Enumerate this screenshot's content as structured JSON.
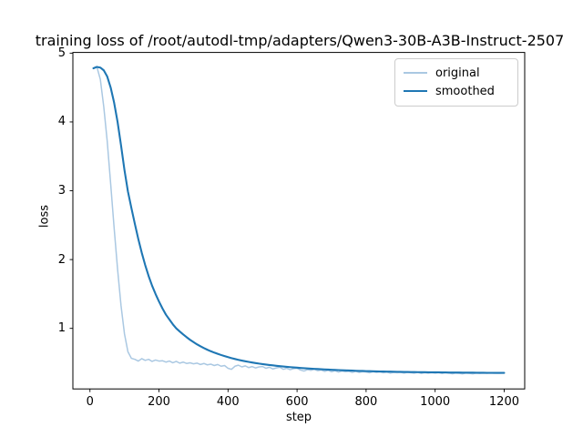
{
  "figure": {
    "title": "training loss of /root/autodl-tmp/adapters/Qwen3-30B-A3B-Instruct-2507"
  },
  "chart_data": {
    "type": "line",
    "title": "training loss of /root/autodl-tmp/adapters/Qwen3-30B-A3B-Instruct-2507",
    "xlabel": "step",
    "ylabel": "loss",
    "grid": false,
    "legend_position": "upper right",
    "xticks": [
      0,
      200,
      400,
      600,
      800,
      1000,
      1200
    ],
    "yticks": [
      1,
      2,
      3,
      4,
      5
    ],
    "xlim": [
      -49.5,
      1259.5
    ],
    "ylim": [
      0.12,
      5.01
    ],
    "x": [
      10,
      20,
      30,
      40,
      50,
      60,
      70,
      80,
      90,
      100,
      110,
      120,
      130,
      140,
      150,
      160,
      170,
      180,
      190,
      200,
      210,
      220,
      230,
      240,
      250,
      260,
      270,
      280,
      290,
      300,
      310,
      320,
      330,
      340,
      350,
      360,
      370,
      380,
      390,
      400,
      410,
      420,
      430,
      440,
      450,
      460,
      470,
      480,
      490,
      500,
      510,
      520,
      530,
      540,
      550,
      560,
      570,
      580,
      590,
      600,
      610,
      620,
      630,
      640,
      650,
      660,
      670,
      680,
      690,
      700,
      710,
      720,
      730,
      740,
      750,
      760,
      770,
      780,
      790,
      800,
      810,
      820,
      830,
      840,
      850,
      860,
      870,
      880,
      890,
      900,
      910,
      920,
      930,
      940,
      950,
      960,
      970,
      980,
      990,
      1000,
      1010,
      1020,
      1030,
      1040,
      1050,
      1060,
      1070,
      1080,
      1090,
      1100,
      1110,
      1120,
      1130,
      1140,
      1150,
      1160,
      1170,
      1180,
      1190,
      1200
    ],
    "series": [
      {
        "name": "original",
        "color": "#aac8e2",
        "values": [
          4.78,
          4.8,
          4.62,
          4.22,
          3.72,
          3.1,
          2.46,
          1.86,
          1.33,
          0.92,
          0.66,
          0.565,
          0.55,
          0.525,
          0.56,
          0.535,
          0.55,
          0.52,
          0.54,
          0.525,
          0.53,
          0.51,
          0.525,
          0.5,
          0.52,
          0.495,
          0.51,
          0.49,
          0.5,
          0.485,
          0.495,
          0.475,
          0.49,
          0.47,
          0.48,
          0.46,
          0.475,
          0.45,
          0.46,
          0.42,
          0.405,
          0.45,
          0.465,
          0.44,
          0.455,
          0.43,
          0.445,
          0.425,
          0.44,
          0.445,
          0.42,
          0.435,
          0.41,
          0.425,
          0.435,
          0.405,
          0.42,
          0.4,
          0.415,
          0.42,
          0.395,
          0.38,
          0.4,
          0.39,
          0.405,
          0.385,
          0.395,
          0.375,
          0.39,
          0.37,
          0.385,
          0.365,
          0.38,
          0.37,
          0.375,
          0.36,
          0.375,
          0.36,
          0.37,
          0.365,
          0.355,
          0.37,
          0.36,
          0.365,
          0.355,
          0.365,
          0.35,
          0.36,
          0.355,
          0.36,
          0.35,
          0.36,
          0.355,
          0.35,
          0.36,
          0.345,
          0.355,
          0.35,
          0.355,
          0.35,
          0.355,
          0.345,
          0.355,
          0.35,
          0.34,
          0.35,
          0.345,
          0.34,
          0.35,
          0.345,
          0.34,
          0.35,
          0.345,
          0.35,
          0.345,
          0.35,
          0.345,
          0.35,
          0.35,
          0.355
        ]
      },
      {
        "name": "smoothed",
        "color": "#1f77b4",
        "values": [
          4.78,
          4.8,
          4.79,
          4.75,
          4.66,
          4.5,
          4.28,
          4.0,
          3.66,
          3.3,
          2.99,
          2.75,
          2.52,
          2.3,
          2.1,
          1.92,
          1.76,
          1.62,
          1.5,
          1.39,
          1.29,
          1.2,
          1.13,
          1.06,
          1.0,
          0.955,
          0.912,
          0.872,
          0.834,
          0.8,
          0.768,
          0.74,
          0.714,
          0.69,
          0.668,
          0.648,
          0.63,
          0.613,
          0.597,
          0.582,
          0.568,
          0.555,
          0.543,
          0.532,
          0.522,
          0.513,
          0.504,
          0.496,
          0.488,
          0.481,
          0.474,
          0.468,
          0.462,
          0.456,
          0.451,
          0.446,
          0.441,
          0.437,
          0.433,
          0.429,
          0.425,
          0.421,
          0.418,
          0.415,
          0.412,
          0.409,
          0.406,
          0.403,
          0.401,
          0.398,
          0.396,
          0.394,
          0.392,
          0.39,
          0.388,
          0.386,
          0.384,
          0.382,
          0.381,
          0.379,
          0.378,
          0.376,
          0.375,
          0.374,
          0.373,
          0.372,
          0.371,
          0.37,
          0.369,
          0.368,
          0.367,
          0.366,
          0.365,
          0.365,
          0.364,
          0.363,
          0.363,
          0.362,
          0.362,
          0.361,
          0.361,
          0.36,
          0.36,
          0.359,
          0.359,
          0.358,
          0.358,
          0.357,
          0.357,
          0.356,
          0.356,
          0.355,
          0.355,
          0.355,
          0.354,
          0.354,
          0.354,
          0.353,
          0.353,
          0.353
        ]
      }
    ]
  }
}
